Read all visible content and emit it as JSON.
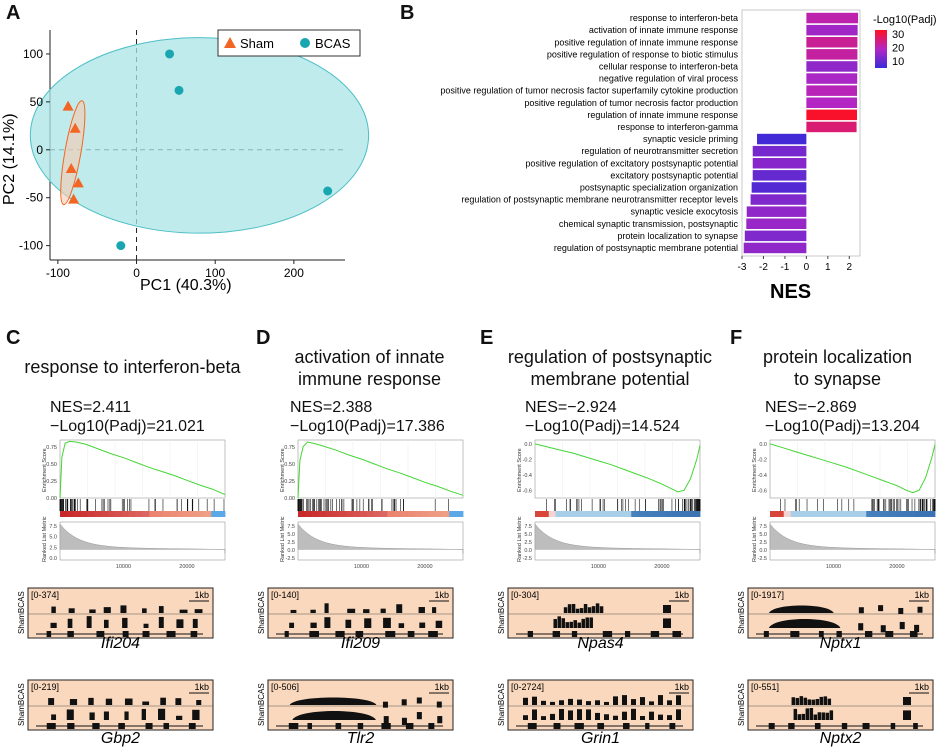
{
  "panels": {
    "A": "A",
    "B": "B",
    "C": "C",
    "D": "D",
    "E": "E",
    "F": "F"
  },
  "pca": {
    "legend": [
      {
        "label": "Sham",
        "color": "#f26522",
        "marker": "triangle"
      },
      {
        "label": "BCAS",
        "color": "#1aa6b0",
        "marker": "circle"
      }
    ],
    "xlabel": "PC1 (40.3%)",
    "ylabel": "PC2 (14.1%)",
    "xticks": [
      "-100",
      "0",
      "100",
      "200"
    ],
    "yticks": [
      "100",
      "50",
      "0",
      "-50",
      "-100"
    ]
  },
  "chart_data": [
    {
      "type": "scatter",
      "title": "",
      "xlabel": "PC1 (40.3%)",
      "ylabel": "PC2 (14.1%)",
      "xlim": [
        -110,
        265
      ],
      "ylim": [
        -115,
        125
      ],
      "series": [
        {
          "name": "Sham",
          "color": "#f26522",
          "points": [
            [
              -87,
              45
            ],
            [
              -78,
              22
            ],
            [
              -74,
              -35
            ],
            [
              -80,
              -52
            ],
            [
              -83,
              -20
            ]
          ]
        },
        {
          "name": "BCAS",
          "color": "#1aa6b0",
          "points": [
            [
              42,
              100
            ],
            [
              54,
              62
            ],
            [
              243,
              -43
            ],
            [
              -20,
              -100
            ]
          ]
        }
      ]
    },
    {
      "type": "bar",
      "title": "",
      "xlabel": "NES",
      "ylabel": "",
      "xlim": [
        -3,
        2.5
      ],
      "xticks": [
        "-3",
        "-2",
        "-1",
        "0",
        "1",
        "2"
      ],
      "color_legend": {
        "title": "-Log10(Padj)",
        "ticks": [
          "30",
          "20",
          "10"
        ],
        "range": [
          5,
          33
        ]
      },
      "categories": [
        "response to interferon-beta",
        "activation of innate immune response",
        "positive regulation of innate immune response",
        "positive regulation of response to biotic stimulus",
        "cellular response to interferon-beta",
        "negative regulation of viral process",
        "positive regulation of tumor necrosis factor superfamily cytokine production",
        "positive regulation of tumor necrosis factor production",
        "regulation of innate immune response",
        "response to interferon-gamma",
        "synaptic vesicle priming",
        "regulation of neurotransmitter secretion",
        "positive regulation of excitatory postsynaptic potential",
        "excitatory postsynaptic potential",
        "postsynaptic specialization organization",
        "regulation of postsynaptic membrane neurotransmitter receptor levels",
        "synaptic vesicle exocytosis",
        "chemical synaptic transmission, postsynaptic",
        "protein localization to synapse",
        "regulation of postsynaptic membrane potential"
      ],
      "values": [
        2.41,
        2.39,
        2.38,
        2.38,
        2.38,
        2.37,
        2.36,
        2.36,
        2.36,
        2.34,
        -2.3,
        -2.5,
        -2.5,
        -2.5,
        -2.55,
        -2.6,
        -2.78,
        -2.8,
        -2.87,
        -2.92
      ],
      "padj_log10": [
        21,
        17,
        23,
        22,
        15,
        18,
        20,
        19,
        32,
        26,
        6,
        12,
        14,
        10,
        8,
        13,
        15,
        16,
        13,
        15
      ]
    },
    {
      "type": "line",
      "title": "response to interferon-beta",
      "ylabel": "Enrichment Score",
      "yticks": [
        "0.75",
        "0.50",
        "0.25",
        "0.00"
      ],
      "xticks": [
        "10000",
        "20000"
      ],
      "ylim": [
        0,
        0.85
      ],
      "x": [
        0,
        300,
        800,
        1500,
        2500,
        4000,
        6000,
        8000,
        10000,
        12000,
        14000,
        16000,
        18000,
        20000,
        22000,
        24000,
        26000
      ],
      "y": [
        0,
        0.6,
        0.8,
        0.83,
        0.82,
        0.79,
        0.72,
        0.65,
        0.59,
        0.52,
        0.45,
        0.39,
        0.33,
        0.26,
        0.19,
        0.13,
        0.05
      ]
    },
    {
      "type": "line",
      "title": "activation of innate immune response",
      "ylabel": "Enrichment Score",
      "yticks": [
        "0.75",
        "0.50",
        "0.25",
        "0.00"
      ],
      "xticks": [
        "10000",
        "20000"
      ],
      "ylim": [
        0,
        0.85
      ],
      "x": [
        0,
        300,
        800,
        1500,
        2500,
        4000,
        6000,
        8000,
        10000,
        12000,
        14000,
        16000,
        18000,
        20000,
        22000,
        24000,
        26000
      ],
      "y": [
        0,
        0.55,
        0.75,
        0.82,
        0.8,
        0.76,
        0.7,
        0.63,
        0.57,
        0.5,
        0.43,
        0.37,
        0.3,
        0.23,
        0.17,
        0.1,
        0.04
      ]
    },
    {
      "type": "line",
      "title": "regulation of postsynaptic membrane potential",
      "ylabel": "Enrichment Score",
      "yticks": [
        "0.0",
        "-0.2",
        "-0.4",
        "-0.6"
      ],
      "xticks": [
        "10000",
        "20000"
      ],
      "ylim": [
        -0.7,
        0.05
      ],
      "x": [
        0,
        2000,
        4000,
        6000,
        8000,
        10000,
        12000,
        14000,
        16000,
        18000,
        20000,
        21500,
        22500,
        23500,
        24500,
        25500,
        26000
      ],
      "y": [
        0,
        -0.04,
        -0.08,
        -0.12,
        -0.17,
        -0.22,
        -0.27,
        -0.33,
        -0.39,
        -0.45,
        -0.52,
        -0.58,
        -0.62,
        -0.6,
        -0.45,
        -0.2,
        -0.02
      ]
    },
    {
      "type": "line",
      "title": "protein localization to synapse",
      "ylabel": "Enrichment Score",
      "yticks": [
        "0.0",
        "-0.2",
        "-0.4",
        "-0.6"
      ],
      "xticks": [
        "10000",
        "20000"
      ],
      "ylim": [
        -0.7,
        0.05
      ],
      "x": [
        0,
        2000,
        4000,
        6000,
        8000,
        10000,
        12000,
        14000,
        16000,
        18000,
        20000,
        21500,
        22500,
        23500,
        24500,
        25500,
        26000
      ],
      "y": [
        0,
        -0.05,
        -0.1,
        -0.15,
        -0.2,
        -0.25,
        -0.3,
        -0.36,
        -0.42,
        -0.48,
        -0.54,
        -0.6,
        -0.63,
        -0.6,
        -0.44,
        -0.18,
        -0.01
      ]
    }
  ],
  "gsea": [
    {
      "letter": "C",
      "title_line1": "response to interferon-beta",
      "title_line2": "",
      "nes": "NES=2.411",
      "padj": "−Log10(Padj)=21.021",
      "es_label": "Enrichment Score",
      "metric_label": "Ranked List Metric",
      "metric_ticks": [
        "7.5",
        "5.0",
        "2.5",
        "0.0"
      ],
      "xticks": [
        "10000",
        "20000"
      ],
      "positive": true
    },
    {
      "letter": "D",
      "title_line1": "activation of innate",
      "title_line2": "immune response",
      "nes": "NES=2.388",
      "padj": "−Log10(Padj)=17.386",
      "es_label": "Enrichment Score",
      "metric_label": "Ranked List Metric",
      "metric_ticks": [
        "7.5",
        "5.0",
        "2.5",
        "0.0",
        "-2.5"
      ],
      "xticks": [
        "10000",
        "20000"
      ],
      "positive": true
    },
    {
      "letter": "E",
      "title_line1": "regulation of postsynaptic",
      "title_line2": "membrane potential",
      "nes": "NES=−2.924",
      "padj": "−Log10(Padj)=14.524",
      "es_label": "Enrichment Score",
      "metric_label": "Ranked List Metric",
      "metric_ticks": [
        "7.5",
        "5.0",
        "2.5",
        "0.0",
        "-2.5"
      ],
      "xticks": [
        "10000",
        "20000"
      ],
      "positive": false
    },
    {
      "letter": "F",
      "title_line1": "protein localization",
      "title_line2": "to synapse",
      "nes": "NES=−2.869",
      "padj": "−Log10(Padj)=13.204",
      "es_label": "Enrichment Score",
      "metric_label": "Ranked List Metric",
      "metric_ticks": [
        "7.5",
        "5.0",
        "2.5",
        "0.0",
        "-2.5"
      ],
      "xticks": [
        "10000",
        "20000"
      ],
      "positive": false
    }
  ],
  "tracks": [
    {
      "range": "[0-374]",
      "scale": "1kb",
      "rowlabel": "ShamBCAS",
      "gene": "Ifi204",
      "kind": "spiky"
    },
    {
      "range": "[0-140]",
      "scale": "1kb",
      "rowlabel": "ShamBCAS",
      "gene": "Ifi209",
      "kind": "spiky"
    },
    {
      "range": "[0-304]",
      "scale": "1kb",
      "rowlabel": "ShamBCAS",
      "gene": "Npas4",
      "kind": "cluster"
    },
    {
      "range": "[0-1917]",
      "scale": "1kb",
      "rowlabel": "ShamBCAS",
      "gene": "Nptx1",
      "kind": "wide"
    },
    {
      "range": "[0-219]",
      "scale": "1kb",
      "rowlabel": "ShamBCAS",
      "gene": "Gbp2",
      "kind": "spiky"
    },
    {
      "range": "[0-506]",
      "scale": "1kb",
      "rowlabel": "ShamBCAS",
      "gene": "Tlr2",
      "kind": "wide"
    },
    {
      "range": "[0-2724]",
      "scale": "1kb",
      "rowlabel": "ShamBCAS",
      "gene": "Grin1",
      "kind": "dense"
    },
    {
      "range": "[0-551]",
      "scale": "1kb",
      "rowlabel": "ShamBCAS",
      "gene": "Nptx2",
      "kind": "cluster"
    }
  ]
}
